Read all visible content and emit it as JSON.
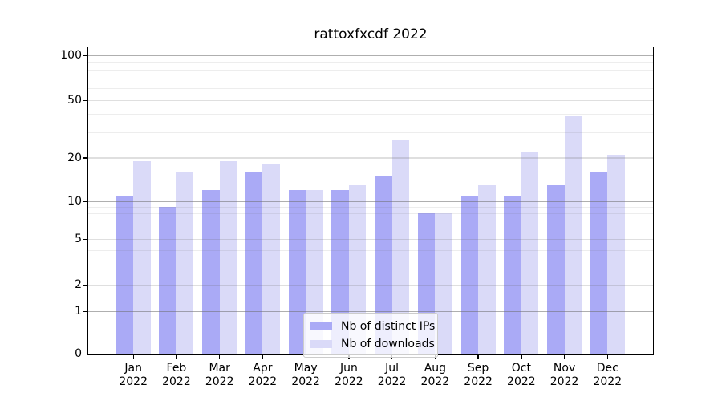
{
  "title": "rattoxfxcdf 2022",
  "colors": {
    "distinct_ips": "#aaaaf6",
    "downloads": "#dadaf8",
    "grid_major": "#b9b9b9",
    "grid_minor": "#ededed",
    "spine": "#000000",
    "legend_border": "#cccccc"
  },
  "legend": {
    "entries": [
      {
        "label": "Nb of distinct IPs",
        "color_key": "distinct_ips"
      },
      {
        "label": "Nb of downloads",
        "color_key": "downloads"
      }
    ],
    "position": "lower center"
  },
  "y_axis": {
    "tick_labels": [
      "0",
      "1",
      "2",
      "5",
      "10",
      "20",
      "50",
      "100"
    ],
    "scale": "symlog"
  },
  "chart_data": {
    "type": "bar",
    "title": "rattoxfxcdf 2022",
    "categories": [
      "Jan 2022",
      "Feb 2022",
      "Mar 2022",
      "Apr 2022",
      "May 2022",
      "Jun 2022",
      "Jul 2022",
      "Aug 2022",
      "Sep 2022",
      "Oct 2022",
      "Nov 2022",
      "Dec 2022"
    ],
    "series": [
      {
        "name": "Nb of distinct IPs",
        "values": [
          11,
          9,
          12,
          16,
          12,
          12,
          15,
          8,
          11,
          11,
          13,
          16
        ]
      },
      {
        "name": "Nb of downloads",
        "values": [
          19,
          16,
          19,
          18,
          12,
          13,
          27,
          8,
          13,
          22,
          39,
          21
        ]
      }
    ],
    "xlabel": "",
    "ylabel": "",
    "yscale": "symlog",
    "yticks": [
      0,
      1,
      2,
      5,
      10,
      20,
      50,
      100
    ],
    "ylim": [
      0,
      113
    ],
    "grid": true,
    "legend_position": "lower center"
  }
}
